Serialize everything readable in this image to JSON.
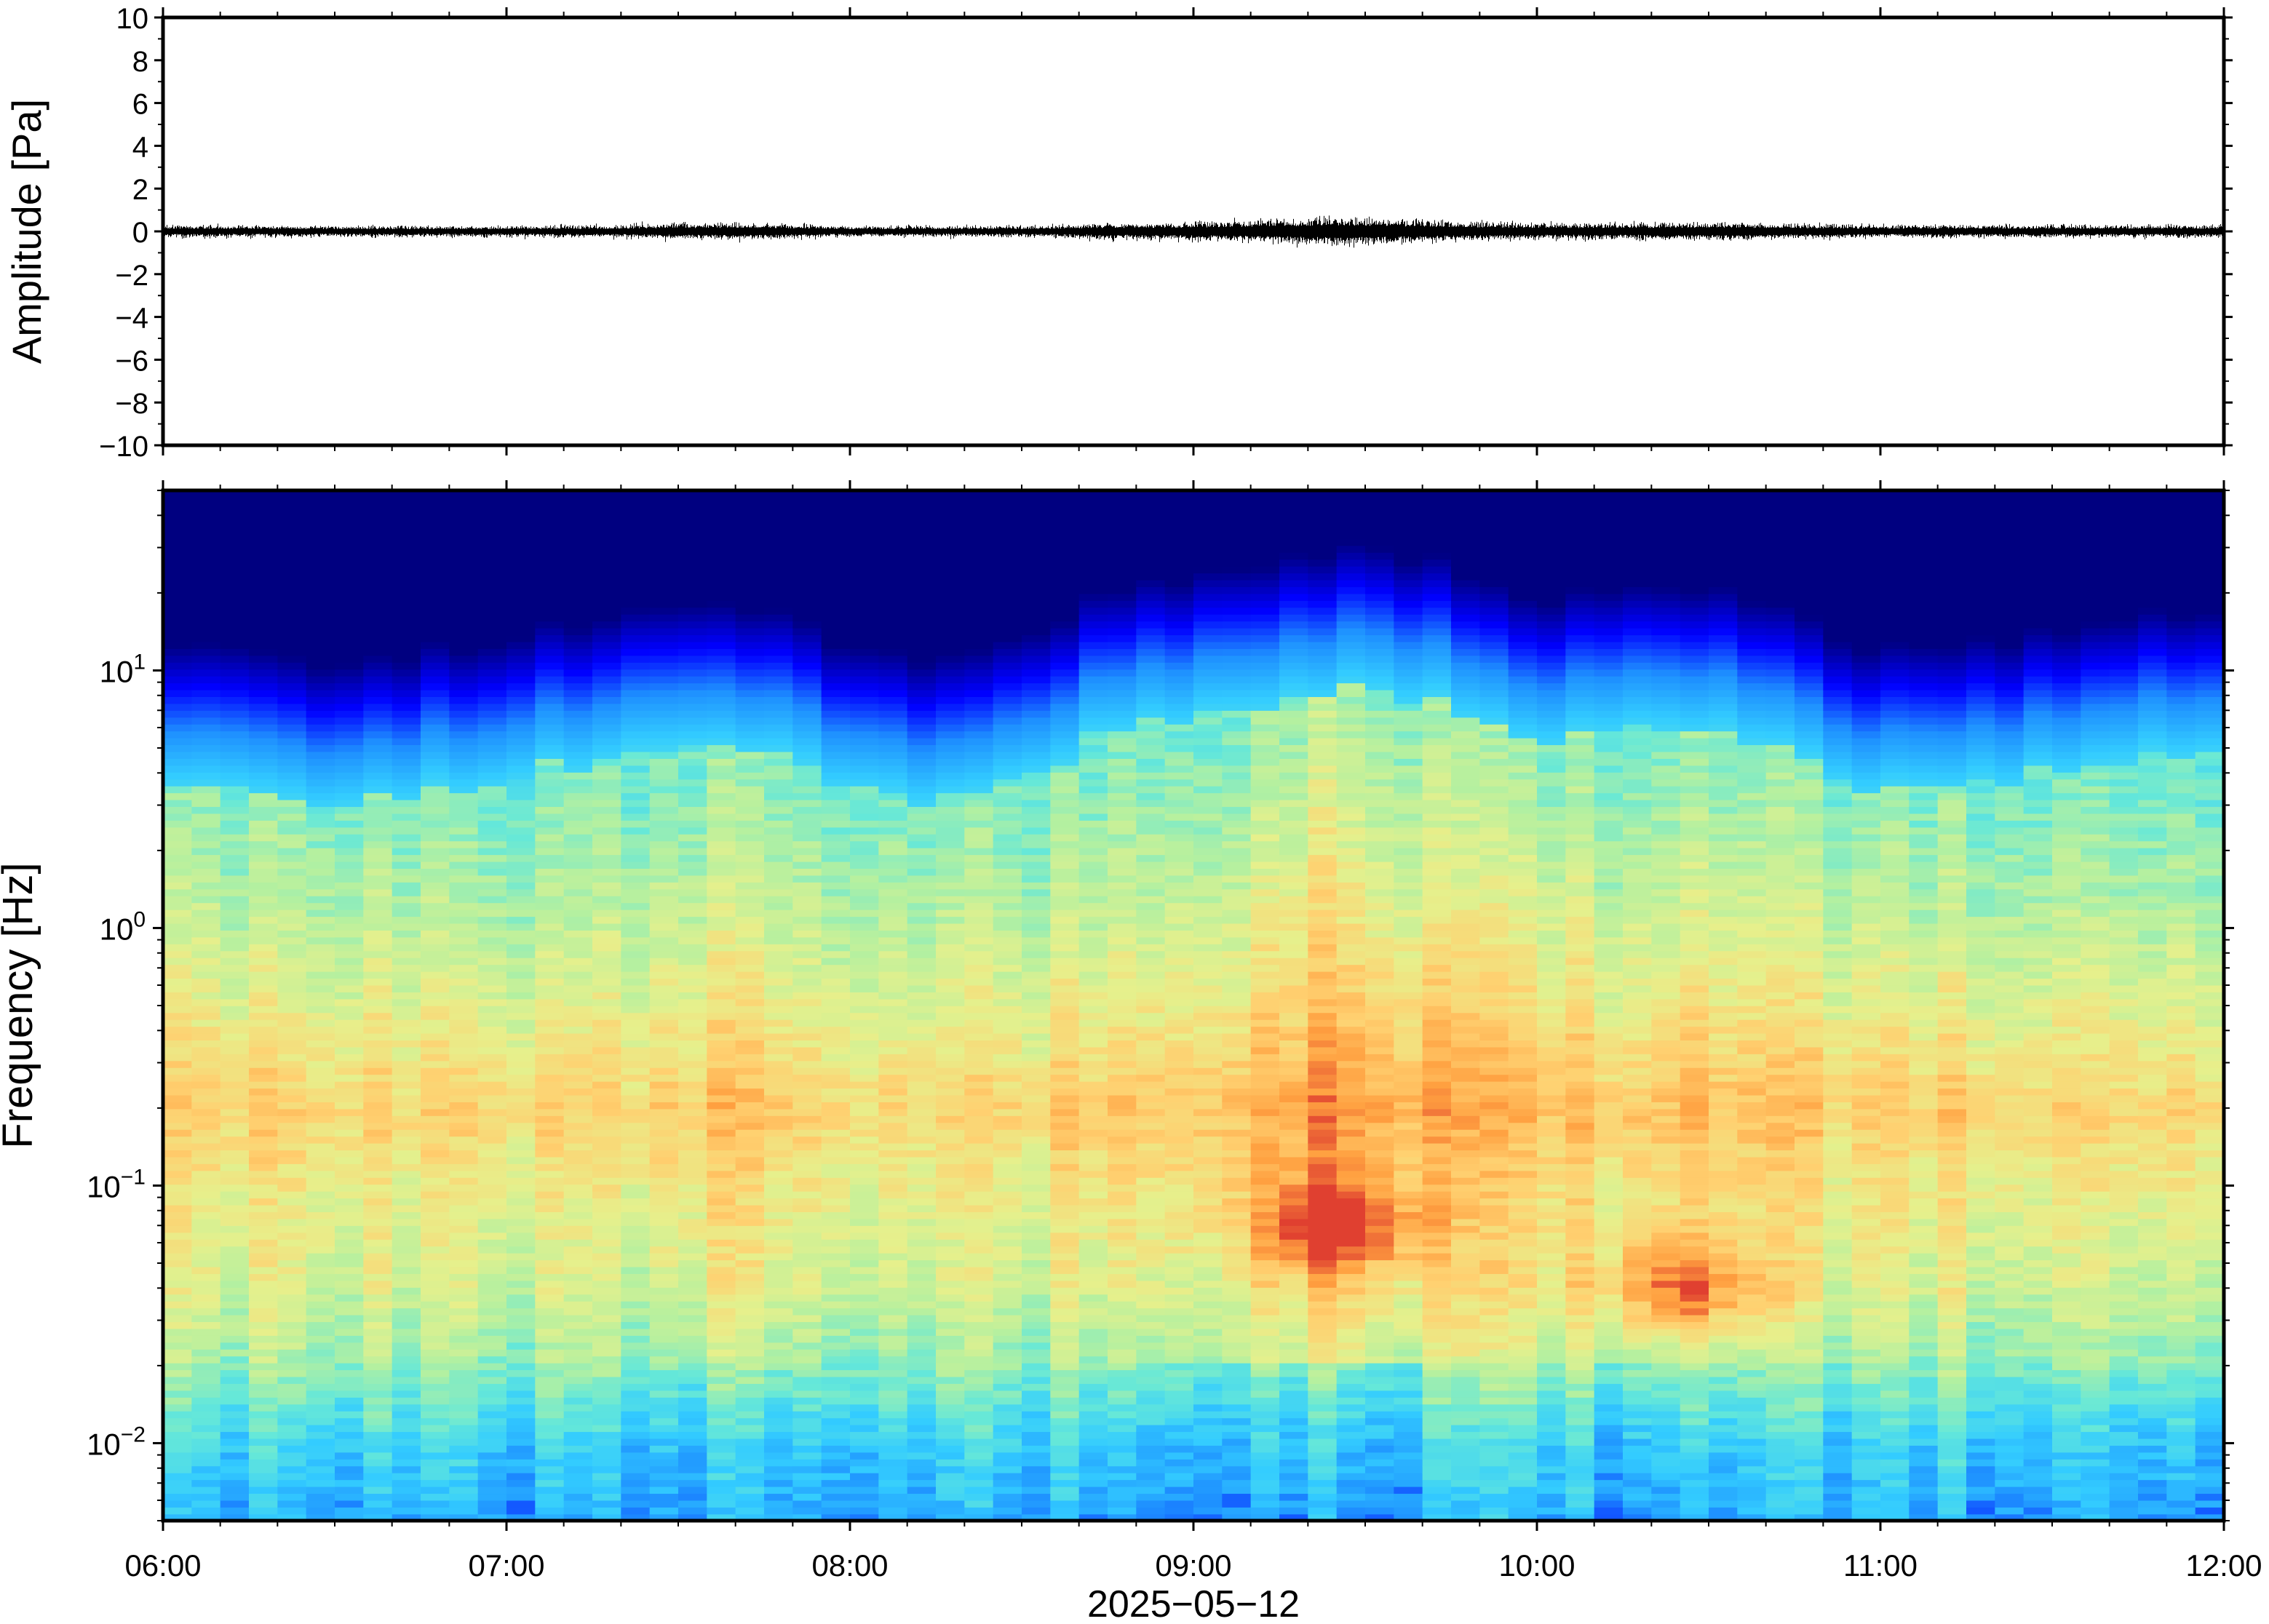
{
  "chart_data": [
    {
      "type": "line",
      "panel": "waveform",
      "ylabel": "Amplitude [Pa]",
      "ylim": [
        -10,
        10
      ],
      "yticks": [
        {
          "value": 10,
          "label": "10"
        },
        {
          "value": 8,
          "label": "8"
        },
        {
          "value": 6,
          "label": "6"
        },
        {
          "value": 4,
          "label": "4"
        },
        {
          "value": 2,
          "label": "2"
        },
        {
          "value": 0,
          "label": "0"
        },
        {
          "value": -2,
          "label": "−2"
        },
        {
          "value": -4,
          "label": "−4"
        },
        {
          "value": -6,
          "label": "−6"
        },
        {
          "value": -8,
          "label": "−8"
        },
        {
          "value": -10,
          "label": "−10"
        }
      ],
      "xlim": [
        "2025-05-12 06:00",
        "2025-05-12 12:00"
      ],
      "envelope": {
        "time": [
          "06:00",
          "06:30",
          "07:00",
          "07:20",
          "07:30",
          "07:45",
          "08:00",
          "08:30",
          "08:45",
          "09:00",
          "09:15",
          "09:25",
          "09:30",
          "09:45",
          "10:00",
          "10:15",
          "10:30",
          "11:00",
          "11:30",
          "12:00"
        ],
        "amplitude_pa": [
          0.35,
          0.3,
          0.3,
          0.35,
          0.45,
          0.45,
          0.3,
          0.3,
          0.45,
          0.5,
          0.65,
          0.8,
          0.75,
          0.55,
          0.45,
          0.45,
          0.5,
          0.35,
          0.35,
          0.35
        ]
      },
      "line_color": "#000000"
    },
    {
      "type": "heatmap",
      "panel": "spectrogram",
      "ylabel": "Frequency [Hz]",
      "yscale": "log",
      "ylim": [
        0.005,
        50
      ],
      "yticks": [
        {
          "value": 10,
          "base": "10",
          "exp": "1"
        },
        {
          "value": 1,
          "base": "10",
          "exp": "0"
        },
        {
          "value": 0.1,
          "base": "10",
          "exp": "−1"
        },
        {
          "value": 0.01,
          "base": "10",
          "exp": "−2"
        }
      ],
      "colormap": [
        "#000080",
        "#0000ff",
        "#1e90ff",
        "#33ccff",
        "#66e8d8",
        "#b4f0a0",
        "#e6f08c",
        "#ffd070",
        "#ffa040",
        "#e04030"
      ],
      "upper_edge_hz": {
        "time": [
          "06:00",
          "06:30",
          "07:00",
          "07:30",
          "07:45",
          "08:00",
          "08:15",
          "08:30",
          "08:45",
          "09:00",
          "09:15",
          "09:30",
          "09:45",
          "10:00",
          "10:30",
          "11:00",
          "11:30",
          "12:00"
        ],
        "value": [
          14,
          10,
          14,
          18,
          18,
          12,
          11,
          13,
          21,
          22,
          26,
          32,
          26,
          19,
          22,
          12,
          14,
          18
        ]
      },
      "peak_events": [
        {
          "time": "09:25",
          "frequency_hz": 0.07
        },
        {
          "time": "10:25",
          "frequency_hz": 0.04
        }
      ],
      "xlim": [
        "2025-05-12 06:00",
        "2025-05-12 12:00"
      ],
      "xticks": [
        "06:00",
        "07:00",
        "08:00",
        "09:00",
        "10:00",
        "11:00",
        "12:00"
      ],
      "xlabel": "2025−05−12"
    }
  ]
}
